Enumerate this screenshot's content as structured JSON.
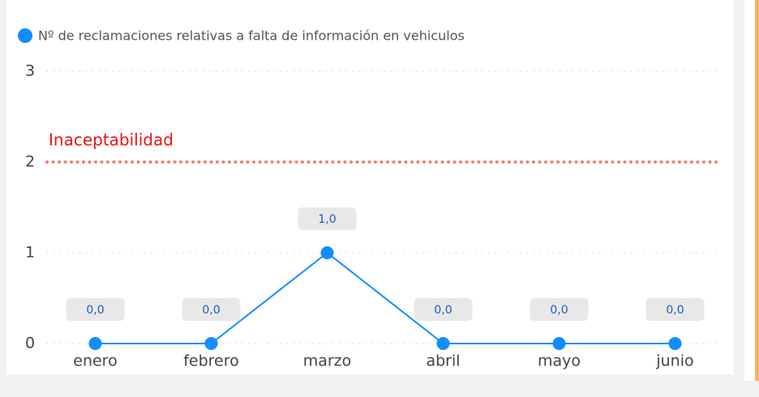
{
  "chart_data": {
    "type": "line",
    "categories": [
      "enero",
      "febrero",
      "marzo",
      "abril",
      "mayo",
      "junio"
    ],
    "series": [
      {
        "name": "Nº de reclamaciones relativas a falta de información en vehiculos",
        "color": "#118dff",
        "values": [
          0,
          0,
          1,
          0,
          0,
          0
        ],
        "value_labels": [
          "0,0",
          "0,0",
          "1,0",
          "0,0",
          "0,0",
          "0,0"
        ]
      }
    ],
    "ylim": [
      0,
      3
    ],
    "yticks": [
      0,
      1,
      2,
      3
    ],
    "grid": true,
    "threshold": {
      "label": "Inaceptabilidad",
      "value": 2,
      "color": "#f25c5c"
    },
    "legend": "top-left"
  }
}
